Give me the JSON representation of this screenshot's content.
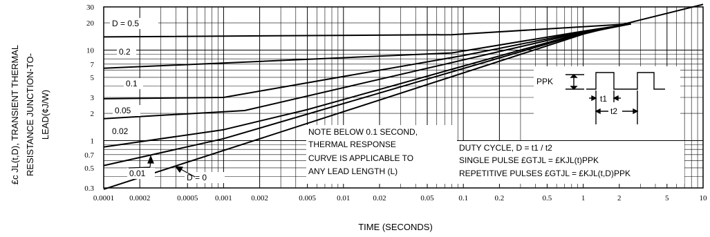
{
  "chart_data": {
    "type": "line",
    "title": "",
    "xlabel": "TIME (SECONDS)",
    "ylabel_lines": [
      "£c JL(t,D), TRANSIENT THERMAL",
      "RESISTANCE JUNCTION-TO-",
      "LEAD(¢J/W)"
    ],
    "x_scale": "log",
    "y_scale": "log",
    "xlim": [
      0.0001,
      10
    ],
    "ylim": [
      0.3,
      30
    ],
    "grid": true,
    "x_tick_labels": [
      {
        "v": 0.0001,
        "t": "0.0001"
      },
      {
        "v": 0.0002,
        "t": "0.0002"
      },
      {
        "v": 0.0005,
        "t": "0.0005"
      },
      {
        "v": 0.001,
        "t": "0.001"
      },
      {
        "v": 0.002,
        "t": "0.002"
      },
      {
        "v": 0.005,
        "t": "0.005"
      },
      {
        "v": 0.01,
        "t": "0.01"
      },
      {
        "v": 0.02,
        "t": "0.02"
      },
      {
        "v": 0.05,
        "t": "0.05"
      },
      {
        "v": 0.1,
        "t": "0.1"
      },
      {
        "v": 0.2,
        "t": "0.2"
      },
      {
        "v": 0.5,
        "t": "0.5"
      },
      {
        "v": 1,
        "t": "1"
      },
      {
        "v": 2,
        "t": "2"
      },
      {
        "v": 5,
        "t": "5"
      },
      {
        "v": 10,
        "t": "10"
      }
    ],
    "y_tick_labels": [
      {
        "v": 30,
        "t": "30"
      },
      {
        "v": 20,
        "t": "20"
      },
      {
        "v": 10,
        "t": "10"
      },
      {
        "v": 7,
        "t": "7"
      },
      {
        "v": 5,
        "t": "5"
      },
      {
        "v": 3,
        "t": "3"
      },
      {
        "v": 2,
        "t": "2"
      },
      {
        "v": 1,
        "t": "1"
      },
      {
        "v": 0.7,
        "t": "0.7"
      },
      {
        "v": 0.5,
        "t": "0.5"
      },
      {
        "v": 0.3,
        "t": "0.3"
      }
    ],
    "series": [
      {
        "name": "D = 0.5",
        "points": [
          [
            0.0001,
            14.0
          ],
          [
            0.08,
            14.8
          ],
          [
            2.5,
            19.5
          ]
        ]
      },
      {
        "name": "0.2",
        "points": [
          [
            0.0001,
            6.3
          ],
          [
            0.08,
            9.3
          ],
          [
            1.0,
            16.2
          ],
          [
            2.5,
            19.5
          ]
        ]
      },
      {
        "name": "0.1",
        "points": [
          [
            0.0001,
            2.9
          ],
          [
            0.001,
            3.0
          ],
          [
            0.1,
            8.7
          ],
          [
            1.0,
            16.0
          ],
          [
            2.5,
            19.5
          ]
        ]
      },
      {
        "name": "0.05",
        "points": [
          [
            0.0001,
            1.75
          ],
          [
            0.0015,
            2.15
          ],
          [
            1.0,
            15.8
          ],
          [
            2.5,
            19.5
          ]
        ]
      },
      {
        "name": "0.02",
        "points": [
          [
            0.0001,
            0.85
          ],
          [
            0.001,
            1.32
          ],
          [
            0.005,
            2.2
          ],
          [
            1.0,
            15.6
          ],
          [
            2.5,
            19.5
          ]
        ]
      },
      {
        "name": "0.01",
        "points": [
          [
            0.0001,
            0.53
          ],
          [
            0.001,
            1.05
          ],
          [
            1.0,
            15.3
          ],
          [
            2.5,
            19.5
          ]
        ]
      },
      {
        "name": "D = 0",
        "points": [
          [
            0.0001,
            0.29
          ],
          [
            1.0,
            15.0
          ],
          [
            10.0,
            32.0
          ]
        ]
      }
    ],
    "annotations": {
      "note_lines": [
        "NOTE BELOW 0.1 SECOND,",
        "THERMAL RESPONSE",
        "CURVE IS APPLICABLE TO",
        "ANY LEAD LENGTH (L)"
      ],
      "duty_lines": [
        "DUTY CYCLE, D = t1 / t2",
        "SINGLE PULSE  £GTJL = £KJL(t)PPK",
        "REPETITIVE PULSES  £GTJL = £KJL(t,D)PPK"
      ],
      "inset": {
        "ppk": "PPK",
        "t1": "t1",
        "t2": "t2"
      }
    }
  }
}
